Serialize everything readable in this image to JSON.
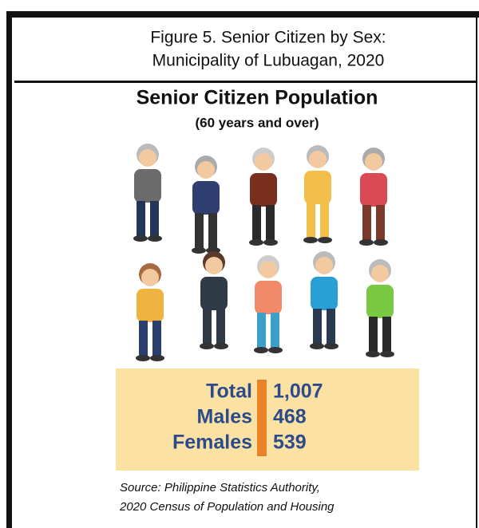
{
  "figure_title": [
    "Figure 5. Senior Citizen by Sex:",
    "Municipality of Lubuagan, 2020"
  ],
  "heading": "Senior Citizen Population",
  "subheading": "(60 years and over)",
  "stats": [
    {
      "label": "Total",
      "value": "1,007"
    },
    {
      "label": "Males",
      "value": "468"
    },
    {
      "label": "Females",
      "value": "539"
    }
  ],
  "source": [
    "Source: Philippine Statistics Authority,",
    "2020 Census of Population and Housing"
  ]
}
